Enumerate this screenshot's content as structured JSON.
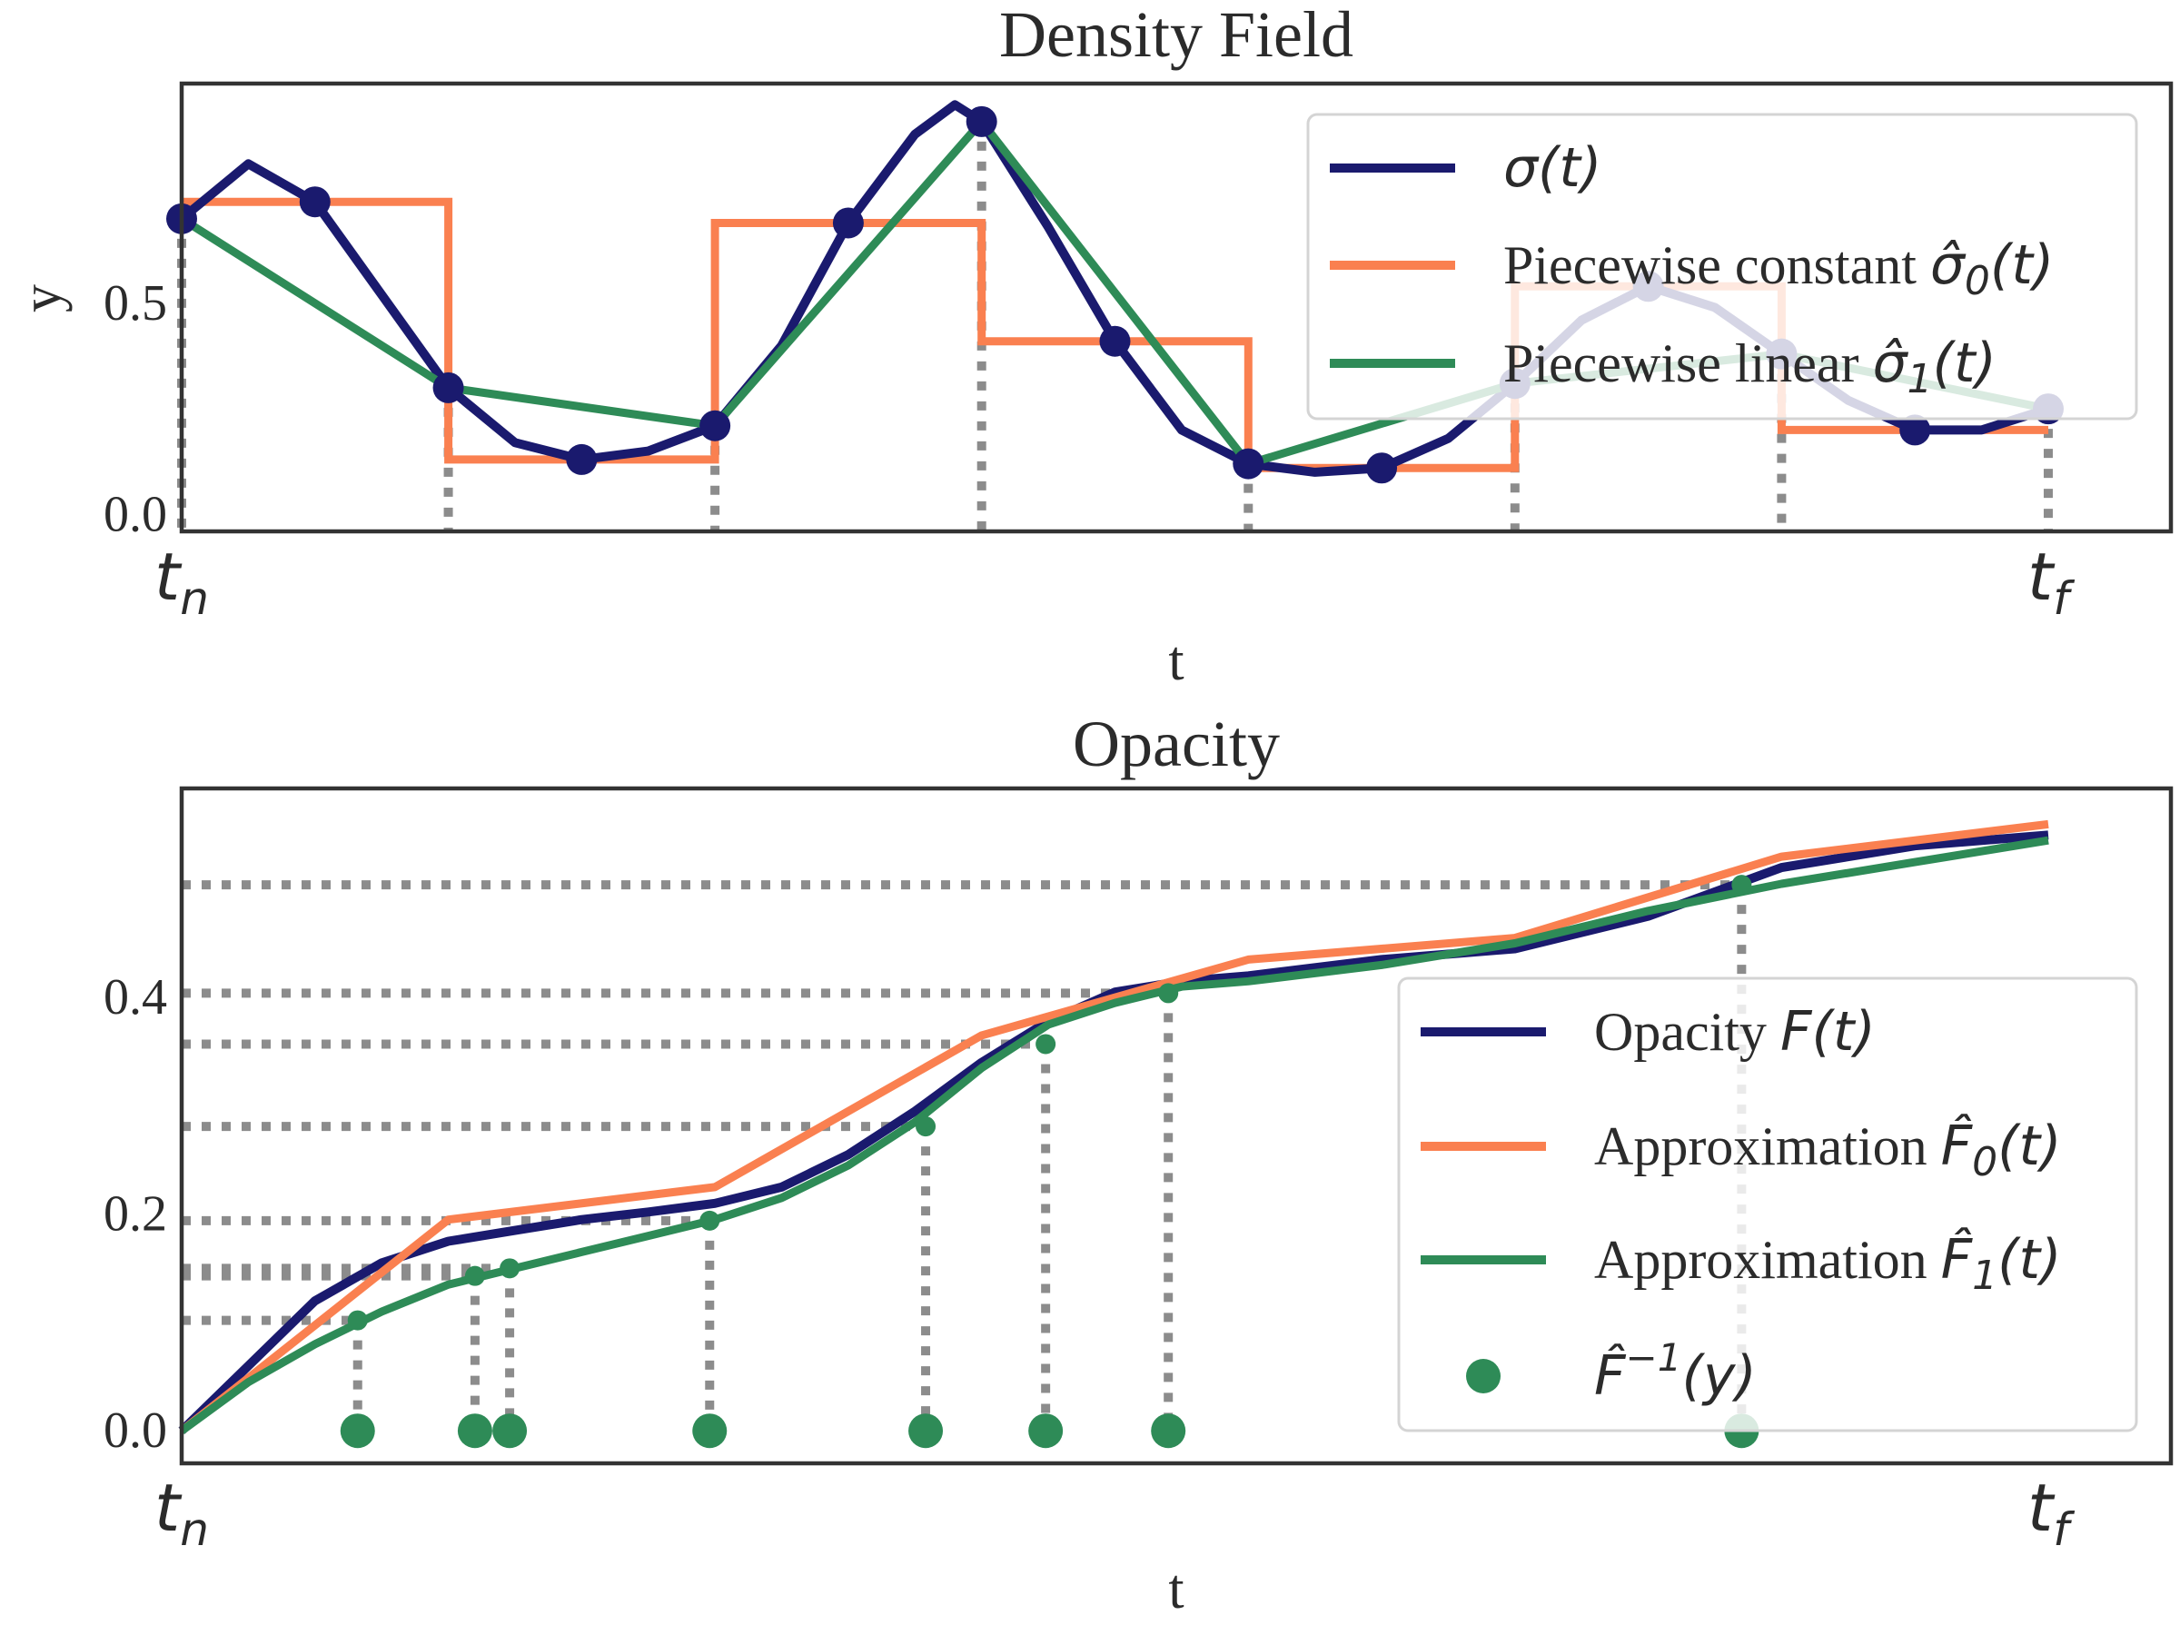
{
  "colors": {
    "sigma": "#1a1a6e",
    "const": "#fa8050",
    "linear": "#2e8b57",
    "guide": "#8c8c8c"
  },
  "chart_data": [
    {
      "type": "line",
      "title": "Density Field",
      "xlabel": "t",
      "ylabel": "y",
      "xlim": [
        0,
        7.46
      ],
      "ylim": [
        -0.04,
        1.02
      ],
      "yticks": [
        {
          "value": 0.0,
          "label": "0.0"
        },
        {
          "value": 0.5,
          "label": "0.5"
        }
      ],
      "xticks": [
        {
          "value": 0,
          "sym": "t",
          "sub": "n"
        },
        {
          "value": 7,
          "sym": "t",
          "sub": "f"
        }
      ],
      "samples": {
        "t": [
          0,
          0.5,
          1,
          1.5,
          2,
          2.5,
          3,
          3.5,
          4,
          4.5,
          5,
          5.5,
          6,
          6.5,
          7
        ],
        "y": [
          0.7,
          0.74,
          0.3,
          0.13,
          0.21,
          0.69,
          0.93,
          0.41,
          0.12,
          0.11,
          0.31,
          0.54,
          0.38,
          0.2,
          0.25
        ]
      },
      "sigma_curve": {
        "t": [
          0,
          0.25,
          0.5,
          0.75,
          1,
          1.25,
          1.5,
          1.75,
          2,
          2.25,
          2.5,
          2.75,
          2.9,
          3,
          3.25,
          3.5,
          3.75,
          4,
          4.25,
          4.5,
          4.75,
          5,
          5.25,
          5.5,
          5.75,
          6,
          6.25,
          6.5,
          6.75,
          7
        ],
        "y": [
          0.7,
          0.83,
          0.74,
          0.52,
          0.3,
          0.17,
          0.13,
          0.15,
          0.21,
          0.4,
          0.69,
          0.9,
          0.97,
          0.93,
          0.68,
          0.41,
          0.2,
          0.12,
          0.1,
          0.11,
          0.18,
          0.31,
          0.46,
          0.54,
          0.49,
          0.38,
          0.27,
          0.2,
          0.2,
          0.25
        ]
      },
      "piecewise_constant": {
        "edges": [
          0,
          1,
          2,
          3,
          4,
          5,
          6,
          7
        ],
        "values": [
          0.74,
          0.13,
          0.69,
          0.41,
          0.11,
          0.54,
          0.2
        ]
      },
      "piecewise_linear": {
        "t": [
          0,
          1,
          2,
          3,
          4,
          5,
          6,
          7
        ],
        "y": [
          0.7,
          0.3,
          0.21,
          0.93,
          0.12,
          0.31,
          0.38,
          0.25
        ]
      },
      "legend": {
        "position": "top-right",
        "entries": [
          {
            "series": "sigma",
            "text": "",
            "math": "σ(t)"
          },
          {
            "series": "const",
            "text": "Piecewise constant ",
            "math": "σ̂",
            "sub": "0",
            "tail": "(t)"
          },
          {
            "series": "linear",
            "text": "Piecewise linear ",
            "math": "σ̂",
            "sub": "1",
            "tail": "(t)"
          }
        ]
      }
    },
    {
      "type": "line",
      "title": "Opacity",
      "xlabel": "t",
      "ylabel": "",
      "xlim": [
        0,
        7.46
      ],
      "ylim": [
        -0.03,
        0.593
      ],
      "yticks": [
        {
          "value": 0.0,
          "label": "0.0"
        },
        {
          "value": 0.2,
          "label": "0.2"
        },
        {
          "value": 0.4,
          "label": "0.4"
        }
      ],
      "xticks": [
        {
          "value": 0,
          "sym": "t",
          "sub": "n"
        },
        {
          "value": 7,
          "sym": "t",
          "sub": "f"
        }
      ],
      "opacity_F": {
        "t": [
          0,
          0.25,
          0.5,
          0.75,
          1,
          1.25,
          1.5,
          1.75,
          2,
          2.25,
          2.5,
          2.75,
          3,
          3.25,
          3.5,
          3.75,
          4,
          4.5,
          5,
          5.5,
          6,
          6.5,
          7
        ],
        "y": [
          0,
          0.06,
          0.12,
          0.155,
          0.175,
          0.185,
          0.195,
          0.202,
          0.21,
          0.225,
          0.255,
          0.295,
          0.34,
          0.378,
          0.405,
          0.415,
          0.42,
          0.435,
          0.445,
          0.475,
          0.52,
          0.54,
          0.55
        ]
      },
      "approx_F0": {
        "t": [
          0,
          1,
          2,
          3,
          4,
          5,
          6,
          7
        ],
        "y": [
          0,
          0.195,
          0.225,
          0.365,
          0.435,
          0.455,
          0.53,
          0.56
        ]
      },
      "approx_F1": {
        "t": [
          0,
          0.25,
          0.5,
          0.75,
          1,
          1.25,
          1.5,
          1.75,
          2,
          2.25,
          2.5,
          2.75,
          3,
          3.25,
          3.5,
          3.75,
          4,
          4.5,
          5,
          5.5,
          6,
          6.5,
          7
        ],
        "y": [
          0,
          0.045,
          0.08,
          0.11,
          0.135,
          0.15,
          0.165,
          0.18,
          0.195,
          0.215,
          0.245,
          0.285,
          0.335,
          0.375,
          0.395,
          0.41,
          0.415,
          0.43,
          0.45,
          0.48,
          0.505,
          0.525,
          0.545
        ]
      },
      "inverse_samples": {
        "t": [
          0.66,
          1.1,
          1.23,
          1.98,
          2.79,
          3.24,
          3.7,
          5.85
        ],
        "y": [
          0.102,
          0.143,
          0.15,
          0.194,
          0.281,
          0.357,
          0.404,
          0.504
        ]
      },
      "legend": {
        "position": "lower-right",
        "entries": [
          {
            "series": "sigma",
            "text": "Opacity ",
            "math": "F",
            "tail": "(t)"
          },
          {
            "series": "const",
            "text": "Approximation ",
            "math": "F̂",
            "sub": "0",
            "tail": "(t)"
          },
          {
            "series": "linear",
            "text": "Approximation ",
            "math": "F̂",
            "sub": "1",
            "tail": "(t)"
          },
          {
            "series": "marker",
            "text": "",
            "math": "F̂",
            "sup": "−1",
            "tail": "(y)"
          }
        ]
      }
    }
  ]
}
